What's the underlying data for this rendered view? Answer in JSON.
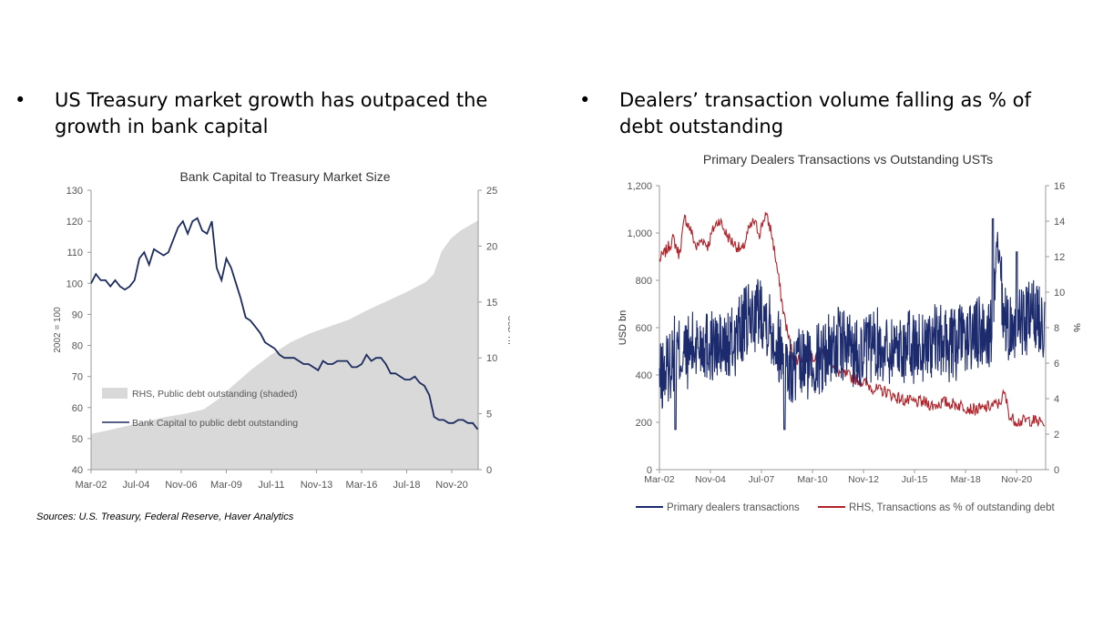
{
  "bullets": {
    "left": {
      "marker": "•",
      "text": "US Treasury market growth has outpaced the growth in bank capital"
    },
    "right": {
      "marker": "•",
      "text": "Dealers’ transaction volume falling as % of debt outstanding"
    }
  },
  "source_note": "Sources: U.S. Treasury,  Federal Reserve, Haver Analytics",
  "chart_data": [
    {
      "type": "line",
      "title": "Bank Capital to Treasury Market Size",
      "ylabel": "2002 = 100",
      "y2label": "USD Tn",
      "x_ticks": [
        "Mar-02",
        "Jul-04",
        "Nov-06",
        "Mar-09",
        "Jul-11",
        "Nov-13",
        "Mar-16",
        "Jul-18",
        "Nov-20"
      ],
      "ylim": [
        40,
        130
      ],
      "y_ticks": [
        "40",
        "50",
        "60",
        "70",
        "80",
        "90",
        "100",
        "110",
        "120",
        "130"
      ],
      "y2lim": [
        0,
        25
      ],
      "y2_ticks": [
        "0",
        "5",
        "10",
        "15",
        "20",
        "25"
      ],
      "grid": false,
      "legend_position": "bottom-left",
      "colors": {
        "line": "#1c2b5e",
        "area": "#d9d9d9"
      },
      "series": [
        {
          "name": "RHS, Public debt outstanding (shaded)",
          "kind": "area",
          "axis": "right",
          "x": [
            2002.17,
            2003.0,
            2004.0,
            2005.0,
            2006.0,
            2007.0,
            2008.0,
            2008.75,
            2009.5,
            2010.5,
            2011.5,
            2012.5,
            2013.5,
            2014.5,
            2015.5,
            2016.5,
            2017.5,
            2018.5,
            2019.5,
            2019.9,
            2020.3,
            2020.8,
            2021.3,
            2021.8,
            2022.2
          ],
          "values": [
            3.2,
            3.5,
            3.9,
            4.3,
            4.7,
            5.0,
            5.4,
            6.3,
            7.5,
            9.0,
            10.3,
            11.4,
            12.2,
            12.8,
            13.4,
            14.3,
            15.1,
            15.9,
            16.8,
            17.5,
            19.5,
            20.7,
            21.4,
            21.9,
            22.3
          ]
        },
        {
          "name": "Bank Capital to public debt outstanding",
          "kind": "line",
          "axis": "left",
          "x": [
            2002.17,
            2002.42,
            2002.67,
            2002.92,
            2003.17,
            2003.42,
            2003.67,
            2003.92,
            2004.17,
            2004.42,
            2004.67,
            2004.92,
            2005.17,
            2005.42,
            2005.67,
            2005.92,
            2006.17,
            2006.42,
            2006.67,
            2006.92,
            2007.17,
            2007.42,
            2007.67,
            2007.92,
            2008.17,
            2008.42,
            2008.67,
            2008.92,
            2009.17,
            2009.42,
            2009.67,
            2009.92,
            2010.17,
            2010.42,
            2010.67,
            2010.92,
            2011.17,
            2011.42,
            2011.67,
            2011.92,
            2012.17,
            2012.42,
            2012.67,
            2012.92,
            2013.17,
            2013.42,
            2013.67,
            2013.92,
            2014.17,
            2014.42,
            2014.67,
            2014.92,
            2015.17,
            2015.42,
            2015.67,
            2015.92,
            2016.17,
            2016.42,
            2016.67,
            2016.92,
            2017.17,
            2017.42,
            2017.67,
            2017.92,
            2018.17,
            2018.42,
            2018.67,
            2018.92,
            2019.17,
            2019.42,
            2019.67,
            2019.92,
            2020.17,
            2020.42,
            2020.67,
            2020.92,
            2021.17,
            2021.42,
            2021.67,
            2021.92,
            2022.17
          ],
          "values": [
            100,
            103,
            101,
            101,
            99,
            101,
            99,
            98,
            99,
            101,
            108,
            110,
            106,
            111,
            110,
            109,
            110,
            114,
            118,
            120,
            116,
            120,
            121,
            117,
            116,
            120,
            105,
            101,
            108,
            105,
            100,
            95,
            89,
            88,
            86,
            84,
            81,
            80,
            79,
            77,
            76,
            76,
            76,
            75,
            74,
            74,
            73,
            72,
            75,
            74,
            74,
            75,
            75,
            75,
            73,
            73,
            74,
            77,
            75,
            76,
            76,
            74,
            71,
            71,
            70,
            69,
            69,
            70,
            68,
            67,
            64,
            57,
            56,
            56,
            55,
            55,
            56,
            56,
            55,
            55,
            53
          ]
        }
      ]
    },
    {
      "type": "line",
      "title": "Primary Dealers Transactions vs Outstanding USTs",
      "ylabel": "USD bn",
      "y2label": "%",
      "x_ticks": [
        "Mar-02",
        "Nov-04",
        "Jul-07",
        "Mar-10",
        "Nov-12",
        "Jul-15",
        "Mar-18",
        "Nov-20"
      ],
      "ylim": [
        0,
        1200
      ],
      "y_ticks": [
        "0",
        "200",
        "400",
        "600",
        "800",
        "1,000",
        "1,200"
      ],
      "y2lim": [
        0,
        16
      ],
      "y2_ticks": [
        "0",
        "2",
        "4",
        "6",
        "8",
        "10",
        "12",
        "14",
        "16"
      ],
      "grid": false,
      "legend_position": "bottom",
      "colors": {
        "blue": "#1c2b6e",
        "red": "#b0232a"
      },
      "series": [
        {
          "name": "Primary dealers transactions",
          "axis": "left",
          "x": [
            2002.17,
            2002.6,
            2003.0,
            2003.5,
            2004.0,
            2004.5,
            2005.0,
            2005.5,
            2006.0,
            2006.5,
            2007.0,
            2007.5,
            2007.9,
            2008.3,
            2008.7,
            2009.0,
            2009.5,
            2010.0,
            2010.5,
            2011.0,
            2011.5,
            2012.0,
            2012.5,
            2013.0,
            2013.5,
            2014.0,
            2014.5,
            2015.0,
            2015.5,
            2016.0,
            2016.5,
            2017.0,
            2017.5,
            2018.0,
            2018.5,
            2019.0,
            2019.5,
            2019.85,
            2020.2,
            2020.6,
            2021.0,
            2021.5,
            2022.0,
            2022.3
          ],
          "values": [
            370,
            430,
            500,
            480,
            520,
            540,
            520,
            510,
            530,
            600,
            640,
            680,
            620,
            540,
            480,
            400,
            440,
            450,
            470,
            510,
            530,
            520,
            500,
            500,
            530,
            510,
            520,
            520,
            510,
            530,
            540,
            540,
            520,
            550,
            560,
            580,
            580,
            900,
            620,
            600,
            610,
            640,
            650,
            620
          ],
          "noise_amplitude": 160
        },
        {
          "name": "RHS, Transactions as % of outstanding debt",
          "axis": "right",
          "x": [
            2002.17,
            2002.5,
            2002.9,
            2003.2,
            2003.5,
            2003.8,
            2004.1,
            2004.4,
            2004.7,
            2005.0,
            2005.3,
            2005.6,
            2005.9,
            2006.2,
            2006.5,
            2006.8,
            2007.1,
            2007.4,
            2007.7,
            2008.0,
            2008.3,
            2008.6,
            2008.9,
            2009.2,
            2009.6,
            2010.0,
            2010.5,
            2011.0,
            2011.5,
            2012.0,
            2012.5,
            2013.0,
            2013.5,
            2014.0,
            2014.5,
            2015.0,
            2015.5,
            2016.0,
            2016.5,
            2017.0,
            2017.5,
            2018.0,
            2018.5,
            2019.0,
            2019.5,
            2019.9,
            2020.2,
            2020.5,
            2021.0,
            2021.5,
            2022.0,
            2022.3
          ],
          "values": [
            11.8,
            12.3,
            13.0,
            12.1,
            14.2,
            13.5,
            12.5,
            13.0,
            12.6,
            13.6,
            14.1,
            13.4,
            12.9,
            12.6,
            12.3,
            13.4,
            14.0,
            13.3,
            14.4,
            13.5,
            11.5,
            9.2,
            7.5,
            6.2,
            6.3,
            6.4,
            6.5,
            6.4,
            5.5,
            5.3,
            5.1,
            4.8,
            4.5,
            4.4,
            4.1,
            3.9,
            3.8,
            3.8,
            3.6,
            3.8,
            3.7,
            3.6,
            3.4,
            3.4,
            3.6,
            3.7,
            4.3,
            2.9,
            2.7,
            2.8,
            2.7,
            2.6
          ],
          "noise_amplitude": 0.35
        }
      ]
    }
  ]
}
